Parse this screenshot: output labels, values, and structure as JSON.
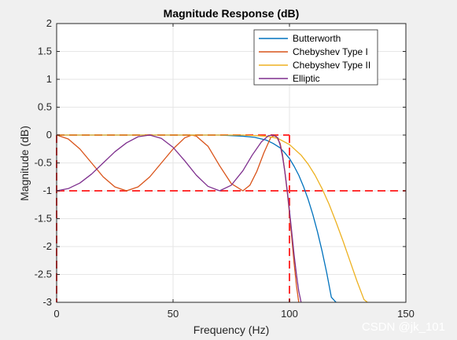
{
  "chart_data": {
    "type": "line",
    "title": "Magnitude Response (dB)",
    "xlabel": "Frequency (Hz)",
    "ylabel": "Magnitude (dB)",
    "xlim": [
      0,
      150
    ],
    "ylim": [
      -3,
      2
    ],
    "xticks": [
      0,
      50,
      100,
      150
    ],
    "xtick_labels": [
      "0",
      "50",
      "100",
      "150"
    ],
    "yticks": [
      2,
      1.5,
      1,
      0.5,
      0,
      -0.5,
      -1,
      -1.5,
      -2,
      -2.5,
      -3
    ],
    "ytick_labels": [
      "2",
      "1.5",
      "1",
      "0.5",
      "0",
      "-0.5",
      "-1",
      "-1.5",
      "-2",
      "-2.5",
      "-3"
    ],
    "grid": true,
    "legend_position": "top-right",
    "series": [
      {
        "name": "Butterworth",
        "color": "#0072BD",
        "x": [
          0,
          10,
          20,
          30,
          40,
          50,
          60,
          70,
          80,
          85,
          90,
          93,
          96,
          98,
          100,
          102,
          104,
          106,
          108,
          110,
          112,
          114,
          116,
          118,
          120
        ],
        "y": [
          0,
          0,
          0,
          0,
          0,
          0,
          0,
          0,
          -0.02,
          -0.04,
          -0.09,
          -0.15,
          -0.23,
          -0.32,
          -0.42,
          -0.56,
          -0.72,
          -0.92,
          -1.15,
          -1.42,
          -1.73,
          -2.08,
          -2.47,
          -2.91,
          -3.0
        ]
      },
      {
        "name": "Chebyshev Type I",
        "color": "#D95319",
        "x": [
          0,
          5,
          10,
          15,
          20,
          25,
          30,
          35,
          40,
          45,
          50,
          55,
          58,
          60,
          65,
          70,
          75,
          80,
          83,
          86,
          89,
          92,
          94,
          96,
          97,
          98,
          99,
          100,
          101,
          102,
          103,
          104
        ],
        "y": [
          0,
          -0.07,
          -0.25,
          -0.5,
          -0.75,
          -0.93,
          -1.0,
          -0.93,
          -0.75,
          -0.5,
          -0.25,
          -0.05,
          0,
          -0.02,
          -0.2,
          -0.55,
          -0.87,
          -1.0,
          -0.9,
          -0.65,
          -0.32,
          -0.04,
          0,
          -0.15,
          -0.35,
          -0.65,
          -1.0,
          -1.4,
          -1.85,
          -2.3,
          -2.7,
          -3.0
        ]
      },
      {
        "name": "Chebyshev Type II",
        "color": "#EDB120",
        "x": [
          0,
          20,
          40,
          60,
          80,
          90,
          95,
          100,
          105,
          108,
          111,
          114,
          117,
          120,
          123,
          126,
          129,
          132,
          133.5
        ],
        "y": [
          0,
          0,
          0,
          0,
          0,
          -0.02,
          -0.06,
          -0.17,
          -0.36,
          -0.52,
          -0.72,
          -0.96,
          -1.24,
          -1.56,
          -1.9,
          -2.26,
          -2.62,
          -2.95,
          -3.0
        ]
      },
      {
        "name": "Elliptic",
        "color": "#7E2F8E",
        "x": [
          0,
          5,
          10,
          15,
          20,
          25,
          30,
          35,
          40,
          45,
          50,
          55,
          60,
          65,
          70,
          75,
          80,
          84,
          88,
          91,
          93,
          95,
          96,
          97,
          98,
          99,
          100,
          101,
          102,
          103,
          104,
          105
        ],
        "y": [
          -1.0,
          -0.96,
          -0.86,
          -0.7,
          -0.5,
          -0.3,
          -0.14,
          -0.03,
          0,
          -0.06,
          -0.22,
          -0.46,
          -0.72,
          -0.92,
          -1.0,
          -0.9,
          -0.64,
          -0.36,
          -0.12,
          -0.01,
          0,
          -0.05,
          -0.18,
          -0.38,
          -0.65,
          -0.98,
          -1.35,
          -1.75,
          -2.15,
          -2.5,
          -2.8,
          -3.0
        ]
      }
    ],
    "reference_lines": {
      "color": "#FF3333",
      "style": "dashed",
      "horizontal_y": [
        0,
        -1
      ],
      "vertical_x": [
        0,
        100
      ]
    }
  },
  "legend_entries": [
    "Butterworth",
    "Chebyshev Type I",
    "Chebyshev Type II",
    "Elliptic"
  ],
  "watermark": "CSDN @jk_101"
}
